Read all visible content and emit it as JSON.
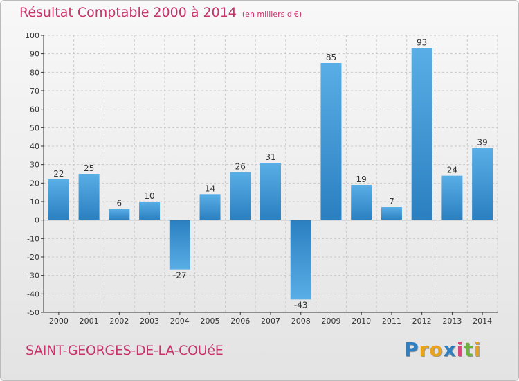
{
  "title": "Résultat Comptable 2000 à 2014",
  "subtitle": "(en milliers d'€)",
  "commune": "SAINT-GEORGES-DE-LA-COUéE",
  "logo": {
    "text": "Proxiti",
    "letters": [
      {
        "ch": "P",
        "color": "#2f7fc1"
      },
      {
        "ch": "r",
        "color": "#e8a21c"
      },
      {
        "ch": "o",
        "color": "#e8a21c"
      },
      {
        "ch": "x",
        "color": "#2f7fc1"
      },
      {
        "ch": "i",
        "color": "#d8467a"
      },
      {
        "ch": "t",
        "color": "#6cb33e"
      },
      {
        "ch": "i",
        "color": "#e8a21c"
      }
    ]
  },
  "colors": {
    "accent": "#c8336a",
    "bar_light": "#5aaee6",
    "bar_dark": "#2a7fc0",
    "grid": "#c9c9c9",
    "axis": "#333333"
  },
  "chart_data": {
    "type": "bar",
    "title": "Résultat Comptable 2000 à 2014",
    "subtitle": "(en milliers d'€)",
    "xlabel": "",
    "ylabel": "",
    "categories": [
      "2000",
      "2001",
      "2002",
      "2003",
      "2004",
      "2005",
      "2006",
      "2007",
      "2008",
      "2009",
      "2010",
      "2011",
      "2012",
      "2013",
      "2014"
    ],
    "values": [
      22,
      25,
      6,
      10,
      -27,
      14,
      26,
      31,
      -43,
      85,
      19,
      7,
      93,
      24,
      39
    ],
    "ylim": [
      -50,
      100
    ],
    "yticks": [
      -50,
      -40,
      -30,
      -20,
      -10,
      0,
      10,
      20,
      30,
      40,
      50,
      60,
      70,
      80,
      90,
      100
    ],
    "grid": true
  }
}
